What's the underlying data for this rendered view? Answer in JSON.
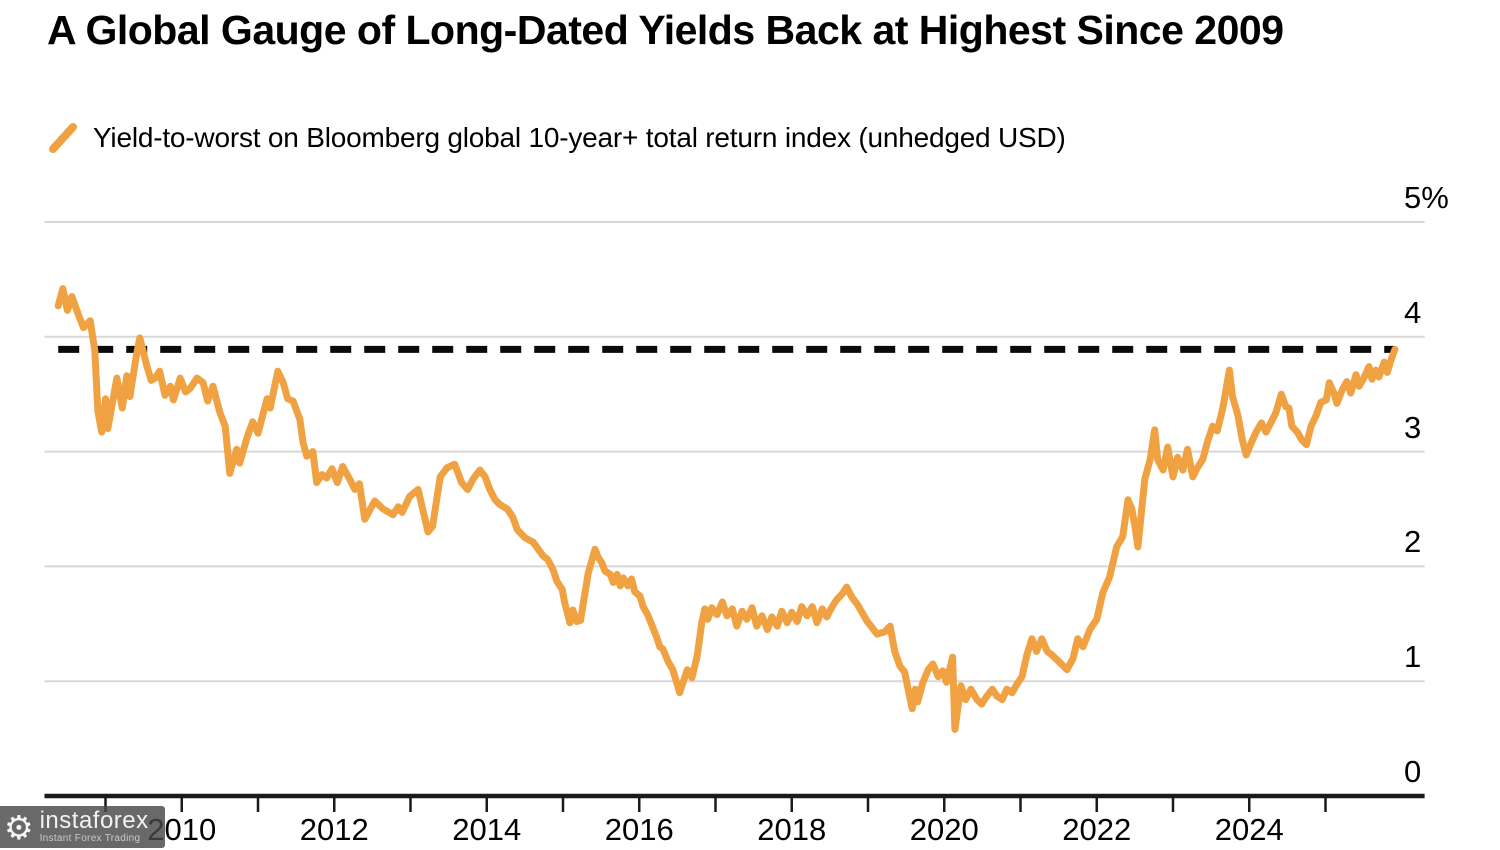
{
  "page": {
    "background": "#FFFFFF"
  },
  "header": {
    "title": "A Global Gauge of Long-Dated Yields Back at Highest Since 2009"
  },
  "legend": {
    "marker": "orange-slash",
    "label": "Yield-to-worst on Bloomberg global 10-year+ total return index (unhedged USD)"
  },
  "watermark": {
    "icon": "gear-logo",
    "brand": "instaforex",
    "tagline": "Instant Forex Trading"
  },
  "chart_data": {
    "type": "line",
    "title": "A Global Gauge of Long-Dated Yields Back at Highest Since 2009",
    "xlabel": "",
    "ylabel": "",
    "unit": "%",
    "ylim": [
      0,
      5
    ],
    "xlim": [
      2008.2,
      2026.3
    ],
    "grid": "horizontal",
    "legend_position": "top-left",
    "dashed_reference_value": 3.89,
    "colors": {
      "line": "#F0A243",
      "grid": "#D8D8D8",
      "axis": "#1A1A1A",
      "dashed": "#0A0A0A"
    },
    "y_ticks": [
      {
        "value": 5,
        "label": "5%"
      },
      {
        "value": 4,
        "label": "4"
      },
      {
        "value": 3,
        "label": "3"
      },
      {
        "value": 2,
        "label": "2"
      },
      {
        "value": 1,
        "label": "1"
      },
      {
        "value": 0,
        "label": "0"
      }
    ],
    "x_tick_years": [
      2009,
      2010,
      2011,
      2012,
      2013,
      2014,
      2015,
      2016,
      2017,
      2018,
      2019,
      2020,
      2021,
      2022,
      2023,
      2024,
      2025
    ],
    "x_labels": [
      {
        "year": 2010,
        "label": "2010"
      },
      {
        "year": 2012,
        "label": "2012"
      },
      {
        "year": 2014,
        "label": "2014"
      },
      {
        "year": 2016,
        "label": "2016"
      },
      {
        "year": 2018,
        "label": "2018"
      },
      {
        "year": 2020,
        "label": "2020"
      },
      {
        "year": 2022,
        "label": "2022"
      },
      {
        "year": 2024,
        "label": "2024"
      }
    ],
    "series": [
      {
        "name": "Yield-to-worst on Bloomberg global 10-year+ total return index (unhedged USD)",
        "color": "#F0A243",
        "points": [
          [
            2008.38,
            4.27
          ],
          [
            2008.44,
            4.42
          ],
          [
            2008.5,
            4.23
          ],
          [
            2008.56,
            4.35
          ],
          [
            2008.64,
            4.2
          ],
          [
            2008.71,
            4.08
          ],
          [
            2008.8,
            4.14
          ],
          [
            2008.86,
            3.88
          ],
          [
            2008.9,
            3.35
          ],
          [
            2008.95,
            3.17
          ],
          [
            2009.0,
            3.46
          ],
          [
            2009.03,
            3.2
          ],
          [
            2009.15,
            3.64
          ],
          [
            2009.22,
            3.38
          ],
          [
            2009.28,
            3.66
          ],
          [
            2009.32,
            3.48
          ],
          [
            2009.4,
            3.82
          ],
          [
            2009.45,
            3.99
          ],
          [
            2009.54,
            3.75
          ],
          [
            2009.6,
            3.62
          ],
          [
            2009.65,
            3.64
          ],
          [
            2009.71,
            3.7
          ],
          [
            2009.78,
            3.49
          ],
          [
            2009.85,
            3.57
          ],
          [
            2009.89,
            3.45
          ],
          [
            2009.98,
            3.64
          ],
          [
            2010.05,
            3.52
          ],
          [
            2010.11,
            3.55
          ],
          [
            2010.2,
            3.64
          ],
          [
            2010.28,
            3.6
          ],
          [
            2010.34,
            3.44
          ],
          [
            2010.41,
            3.57
          ],
          [
            2010.5,
            3.34
          ],
          [
            2010.57,
            3.22
          ],
          [
            2010.63,
            2.81
          ],
          [
            2010.72,
            3.02
          ],
          [
            2010.76,
            2.9
          ],
          [
            2010.86,
            3.13
          ],
          [
            2010.93,
            3.26
          ],
          [
            2011.0,
            3.16
          ],
          [
            2011.12,
            3.46
          ],
          [
            2011.16,
            3.38
          ],
          [
            2011.26,
            3.7
          ],
          [
            2011.33,
            3.6
          ],
          [
            2011.39,
            3.46
          ],
          [
            2011.46,
            3.44
          ],
          [
            2011.55,
            3.28
          ],
          [
            2011.59,
            3.08
          ],
          [
            2011.64,
            2.96
          ],
          [
            2011.72,
            3.0
          ],
          [
            2011.77,
            2.73
          ],
          [
            2011.84,
            2.8
          ],
          [
            2011.9,
            2.77
          ],
          [
            2011.97,
            2.85
          ],
          [
            2012.04,
            2.73
          ],
          [
            2012.11,
            2.87
          ],
          [
            2012.21,
            2.75
          ],
          [
            2012.27,
            2.67
          ],
          [
            2012.33,
            2.72
          ],
          [
            2012.4,
            2.41
          ],
          [
            2012.53,
            2.57
          ],
          [
            2012.64,
            2.5
          ],
          [
            2012.77,
            2.45
          ],
          [
            2012.84,
            2.52
          ],
          [
            2012.89,
            2.47
          ],
          [
            2012.99,
            2.61
          ],
          [
            2013.1,
            2.67
          ],
          [
            2013.23,
            2.3
          ],
          [
            2013.29,
            2.35
          ],
          [
            2013.39,
            2.78
          ],
          [
            2013.48,
            2.86
          ],
          [
            2013.58,
            2.89
          ],
          [
            2013.67,
            2.73
          ],
          [
            2013.75,
            2.67
          ],
          [
            2013.82,
            2.76
          ],
          [
            2013.91,
            2.84
          ],
          [
            2013.98,
            2.78
          ],
          [
            2014.04,
            2.67
          ],
          [
            2014.11,
            2.58
          ],
          [
            2014.17,
            2.54
          ],
          [
            2014.27,
            2.5
          ],
          [
            2014.34,
            2.43
          ],
          [
            2014.4,
            2.32
          ],
          [
            2014.5,
            2.25
          ],
          [
            2014.61,
            2.21
          ],
          [
            2014.74,
            2.09
          ],
          [
            2014.8,
            2.06
          ],
          [
            2014.87,
            1.97
          ],
          [
            2014.92,
            1.87
          ],
          [
            2014.99,
            1.8
          ],
          [
            2015.02,
            1.69
          ],
          [
            2015.09,
            1.51
          ],
          [
            2015.13,
            1.62
          ],
          [
            2015.18,
            1.52
          ],
          [
            2015.23,
            1.53
          ],
          [
            2015.33,
            1.94
          ],
          [
            2015.42,
            2.15
          ],
          [
            2015.46,
            2.08
          ],
          [
            2015.51,
            2.03
          ],
          [
            2015.55,
            1.96
          ],
          [
            2015.62,
            1.93
          ],
          [
            2015.66,
            1.86
          ],
          [
            2015.71,
            1.93
          ],
          [
            2015.75,
            1.83
          ],
          [
            2015.79,
            1.9
          ],
          [
            2015.85,
            1.83
          ],
          [
            2015.9,
            1.89
          ],
          [
            2015.94,
            1.78
          ],
          [
            2016.01,
            1.74
          ],
          [
            2016.05,
            1.65
          ],
          [
            2016.11,
            1.58
          ],
          [
            2016.17,
            1.48
          ],
          [
            2016.23,
            1.38
          ],
          [
            2016.27,
            1.3
          ],
          [
            2016.31,
            1.28
          ],
          [
            2016.38,
            1.17
          ],
          [
            2016.44,
            1.1
          ],
          [
            2016.49,
            0.99
          ],
          [
            2016.53,
            0.9
          ],
          [
            2016.56,
            0.96
          ],
          [
            2016.63,
            1.1
          ],
          [
            2016.69,
            1.03
          ],
          [
            2016.76,
            1.22
          ],
          [
            2016.82,
            1.51
          ],
          [
            2016.86,
            1.63
          ],
          [
            2016.9,
            1.54
          ],
          [
            2016.95,
            1.64
          ],
          [
            2017.02,
            1.58
          ],
          [
            2017.09,
            1.69
          ],
          [
            2017.15,
            1.57
          ],
          [
            2017.22,
            1.63
          ],
          [
            2017.28,
            1.48
          ],
          [
            2017.35,
            1.61
          ],
          [
            2017.41,
            1.54
          ],
          [
            2017.48,
            1.64
          ],
          [
            2017.54,
            1.48
          ],
          [
            2017.61,
            1.57
          ],
          [
            2017.68,
            1.45
          ],
          [
            2017.74,
            1.56
          ],
          [
            2017.81,
            1.48
          ],
          [
            2017.87,
            1.61
          ],
          [
            2017.94,
            1.51
          ],
          [
            2018.0,
            1.6
          ],
          [
            2018.07,
            1.52
          ],
          [
            2018.13,
            1.65
          ],
          [
            2018.2,
            1.57
          ],
          [
            2018.27,
            1.65
          ],
          [
            2018.33,
            1.51
          ],
          [
            2018.4,
            1.63
          ],
          [
            2018.46,
            1.56
          ],
          [
            2018.53,
            1.65
          ],
          [
            2018.59,
            1.71
          ],
          [
            2018.66,
            1.76
          ],
          [
            2018.72,
            1.82
          ],
          [
            2018.79,
            1.73
          ],
          [
            2018.86,
            1.67
          ],
          [
            2018.92,
            1.6
          ],
          [
            2018.99,
            1.52
          ],
          [
            2019.05,
            1.47
          ],
          [
            2019.12,
            1.41
          ],
          [
            2019.22,
            1.43
          ],
          [
            2019.29,
            1.48
          ],
          [
            2019.35,
            1.26
          ],
          [
            2019.42,
            1.13
          ],
          [
            2019.48,
            1.08
          ],
          [
            2019.58,
            0.76
          ],
          [
            2019.62,
            0.93
          ],
          [
            2019.65,
            0.82
          ],
          [
            2019.72,
            0.99
          ],
          [
            2019.79,
            1.1
          ],
          [
            2019.85,
            1.15
          ],
          [
            2019.92,
            1.04
          ],
          [
            2019.98,
            1.09
          ],
          [
            2020.03,
            0.99
          ],
          [
            2020.11,
            1.21
          ],
          [
            2020.14,
            0.58
          ],
          [
            2020.22,
            0.96
          ],
          [
            2020.28,
            0.84
          ],
          [
            2020.35,
            0.93
          ],
          [
            2020.43,
            0.84
          ],
          [
            2020.49,
            0.8
          ],
          [
            2020.56,
            0.87
          ],
          [
            2020.63,
            0.93
          ],
          [
            2020.69,
            0.87
          ],
          [
            2020.76,
            0.84
          ],
          [
            2020.82,
            0.93
          ],
          [
            2020.89,
            0.9
          ],
          [
            2020.95,
            0.97
          ],
          [
            2021.02,
            1.04
          ],
          [
            2021.08,
            1.22
          ],
          [
            2021.15,
            1.37
          ],
          [
            2021.21,
            1.26
          ],
          [
            2021.28,
            1.37
          ],
          [
            2021.35,
            1.26
          ],
          [
            2021.41,
            1.23
          ],
          [
            2021.52,
            1.16
          ],
          [
            2021.61,
            1.1
          ],
          [
            2021.69,
            1.2
          ],
          [
            2021.75,
            1.37
          ],
          [
            2021.82,
            1.3
          ],
          [
            2021.91,
            1.45
          ],
          [
            2022.0,
            1.54
          ],
          [
            2022.08,
            1.77
          ],
          [
            2022.17,
            1.91
          ],
          [
            2022.26,
            2.17
          ],
          [
            2022.34,
            2.26
          ],
          [
            2022.41,
            2.58
          ],
          [
            2022.46,
            2.5
          ],
          [
            2022.5,
            2.35
          ],
          [
            2022.54,
            2.17
          ],
          [
            2022.63,
            2.76
          ],
          [
            2022.7,
            2.93
          ],
          [
            2022.76,
            3.19
          ],
          [
            2022.8,
            2.93
          ],
          [
            2022.87,
            2.84
          ],
          [
            2022.93,
            3.04
          ],
          [
            2023.0,
            2.78
          ],
          [
            2023.06,
            2.95
          ],
          [
            2023.13,
            2.84
          ],
          [
            2023.19,
            3.02
          ],
          [
            2023.26,
            2.78
          ],
          [
            2023.32,
            2.86
          ],
          [
            2023.39,
            2.93
          ],
          [
            2023.45,
            3.08
          ],
          [
            2023.52,
            3.22
          ],
          [
            2023.58,
            3.18
          ],
          [
            2023.65,
            3.37
          ],
          [
            2023.74,
            3.71
          ],
          [
            2023.78,
            3.48
          ],
          [
            2023.85,
            3.32
          ],
          [
            2023.91,
            3.1
          ],
          [
            2023.96,
            2.97
          ],
          [
            2024.03,
            3.08
          ],
          [
            2024.09,
            3.17
          ],
          [
            2024.16,
            3.25
          ],
          [
            2024.22,
            3.17
          ],
          [
            2024.29,
            3.26
          ],
          [
            2024.35,
            3.34
          ],
          [
            2024.42,
            3.5
          ],
          [
            2024.48,
            3.39
          ],
          [
            2024.52,
            3.38
          ],
          [
            2024.56,
            3.22
          ],
          [
            2024.63,
            3.17
          ],
          [
            2024.69,
            3.1
          ],
          [
            2024.75,
            3.06
          ],
          [
            2024.81,
            3.22
          ],
          [
            2024.88,
            3.32
          ],
          [
            2024.94,
            3.43
          ],
          [
            2025.01,
            3.45
          ],
          [
            2025.05,
            3.6
          ],
          [
            2025.11,
            3.51
          ],
          [
            2025.15,
            3.42
          ],
          [
            2025.22,
            3.54
          ],
          [
            2025.28,
            3.61
          ],
          [
            2025.33,
            3.51
          ],
          [
            2025.4,
            3.67
          ],
          [
            2025.44,
            3.57
          ],
          [
            2025.51,
            3.65
          ],
          [
            2025.57,
            3.74
          ],
          [
            2025.61,
            3.63
          ],
          [
            2025.66,
            3.71
          ],
          [
            2025.7,
            3.65
          ],
          [
            2025.77,
            3.78
          ],
          [
            2025.81,
            3.69
          ],
          [
            2025.86,
            3.8
          ],
          [
            2025.91,
            3.89
          ]
        ]
      }
    ]
  }
}
